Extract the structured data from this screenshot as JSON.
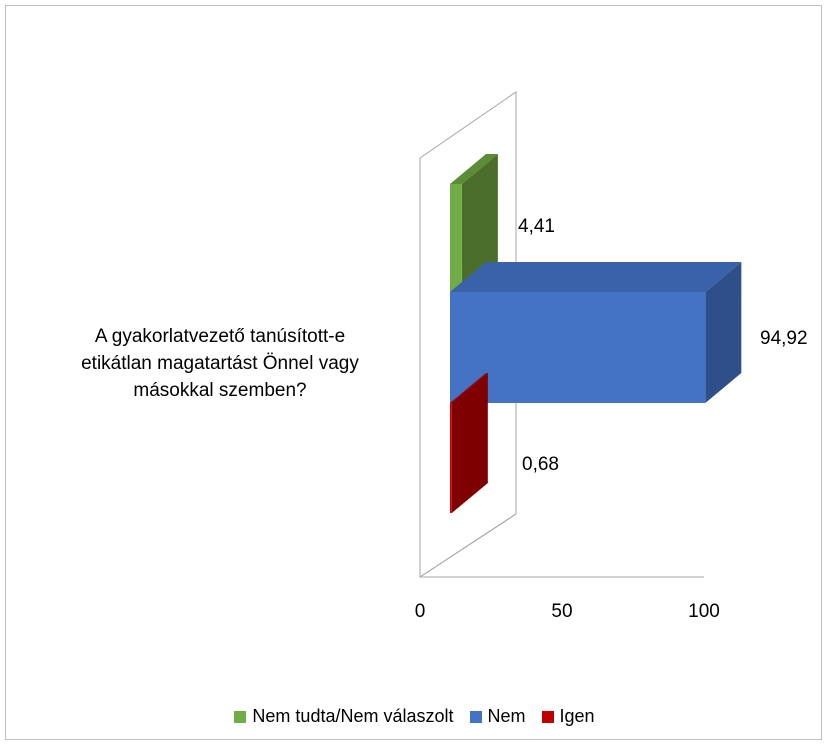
{
  "chart_data": {
    "type": "bar",
    "orientation": "horizontal",
    "three_d": true,
    "categories": [
      "A gyakorlatvezető tanúsított-e etikátlan magatartást Önnel vagy másokkal szemben?"
    ],
    "category_lines": [
      "A gyakorlatvezető tanúsított-e",
      "etikátlan magatartást Önnel vagy",
      "másokkal szemben?"
    ],
    "series": [
      {
        "name": "Nem tudta/Nem válaszolt",
        "values": [
          4.41
        ],
        "label": "4,41",
        "color": "#70ad47",
        "side_color": "#4b6e2b",
        "top_color": "#5b8c36"
      },
      {
        "name": "Nem",
        "values": [
          94.92
        ],
        "label": "94,92",
        "color": "#4472c4",
        "side_color": "#2e4f8a",
        "top_color": "#3a62a8"
      },
      {
        "name": "Igen",
        "values": [
          0.68
        ],
        "label": "0,68",
        "color": "#c00000",
        "side_color": "#7f0000",
        "top_color": "#9c0000"
      }
    ],
    "xlim": [
      0,
      100
    ],
    "x_ticks": [
      "0",
      "50",
      "100"
    ],
    "grid": false,
    "legend_position": "bottom"
  }
}
